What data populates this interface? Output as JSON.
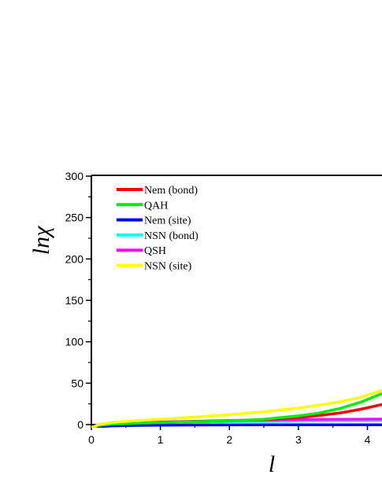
{
  "chart_data": {
    "type": "line",
    "title": "",
    "xlabel": "l",
    "ylabel": "lnχ",
    "xlim": [
      0,
      4.2
    ],
    "ylim": [
      0,
      300
    ],
    "x_ticks": [
      "0",
      "1",
      "2",
      "3",
      "4"
    ],
    "y_ticks": [
      "0",
      "50",
      "100",
      "150",
      "200",
      "250",
      "300"
    ],
    "legend_position": "top-left",
    "grid": false,
    "series": [
      {
        "name": "Nem (bond)",
        "color": "#ff0000",
        "x": [
          0,
          0.1,
          0.3,
          0.6,
          1.0,
          1.5,
          2.0,
          2.5,
          3.0,
          3.3,
          3.6,
          3.9,
          4.2
        ],
        "y": [
          -4,
          -1,
          0.5,
          1.5,
          2.5,
          3.5,
          4.5,
          6,
          8.5,
          11,
          14,
          18.5,
          24
        ]
      },
      {
        "name": "QAH",
        "color": "#00ee00",
        "x": [
          0,
          0.1,
          0.3,
          0.6,
          1.0,
          1.5,
          2.0,
          2.5,
          3.0,
          3.3,
          3.6,
          3.9,
          4.2
        ],
        "y": [
          -4,
          -1,
          0.5,
          1.5,
          2.5,
          3.5,
          4.5,
          6.5,
          10.5,
          14,
          19.5,
          27,
          37
        ]
      },
      {
        "name": "Nem (site)",
        "color": "#0000ff",
        "x": [
          0,
          0.1,
          0.3,
          0.6,
          1.0,
          1.5,
          2.0,
          2.5,
          3.0,
          3.5,
          4.2
        ],
        "y": [
          -4,
          -2.5,
          -1.5,
          -1,
          -0.7,
          -0.5,
          -0.4,
          -0.3,
          -0.3,
          -0.2,
          -0.2
        ]
      },
      {
        "name": "NSN (bond)",
        "color": "#00ffff",
        "x": [
          0,
          0.1,
          0.3,
          0.6,
          1.0,
          1.5,
          2.0,
          2.5,
          3.0,
          3.5,
          4.2
        ],
        "y": [
          -4,
          -1,
          0.5,
          1.5,
          2.3,
          3,
          3.5,
          3.9,
          4.2,
          4.5,
          4.8
        ]
      },
      {
        "name": "QSH",
        "color": "#ff00ff",
        "x": [
          0,
          0.1,
          0.3,
          0.6,
          1.0,
          1.5,
          2.0,
          2.5,
          3.0,
          3.5,
          4.2
        ],
        "y": [
          -4,
          -1,
          0.8,
          2,
          3,
          4,
          5,
          5.6,
          6,
          6.3,
          6.6
        ]
      },
      {
        "name": "NSN (site)",
        "color": "#ffff00",
        "x": [
          0,
          0.1,
          0.3,
          0.6,
          1.0,
          1.5,
          2.0,
          2.5,
          3.0,
          3.3,
          3.6,
          3.9,
          4.2
        ],
        "y": [
          -4,
          0,
          2.5,
          4.5,
          6.5,
          9,
          12,
          15.5,
          20,
          23.5,
          27.5,
          33,
          41
        ]
      }
    ]
  }
}
